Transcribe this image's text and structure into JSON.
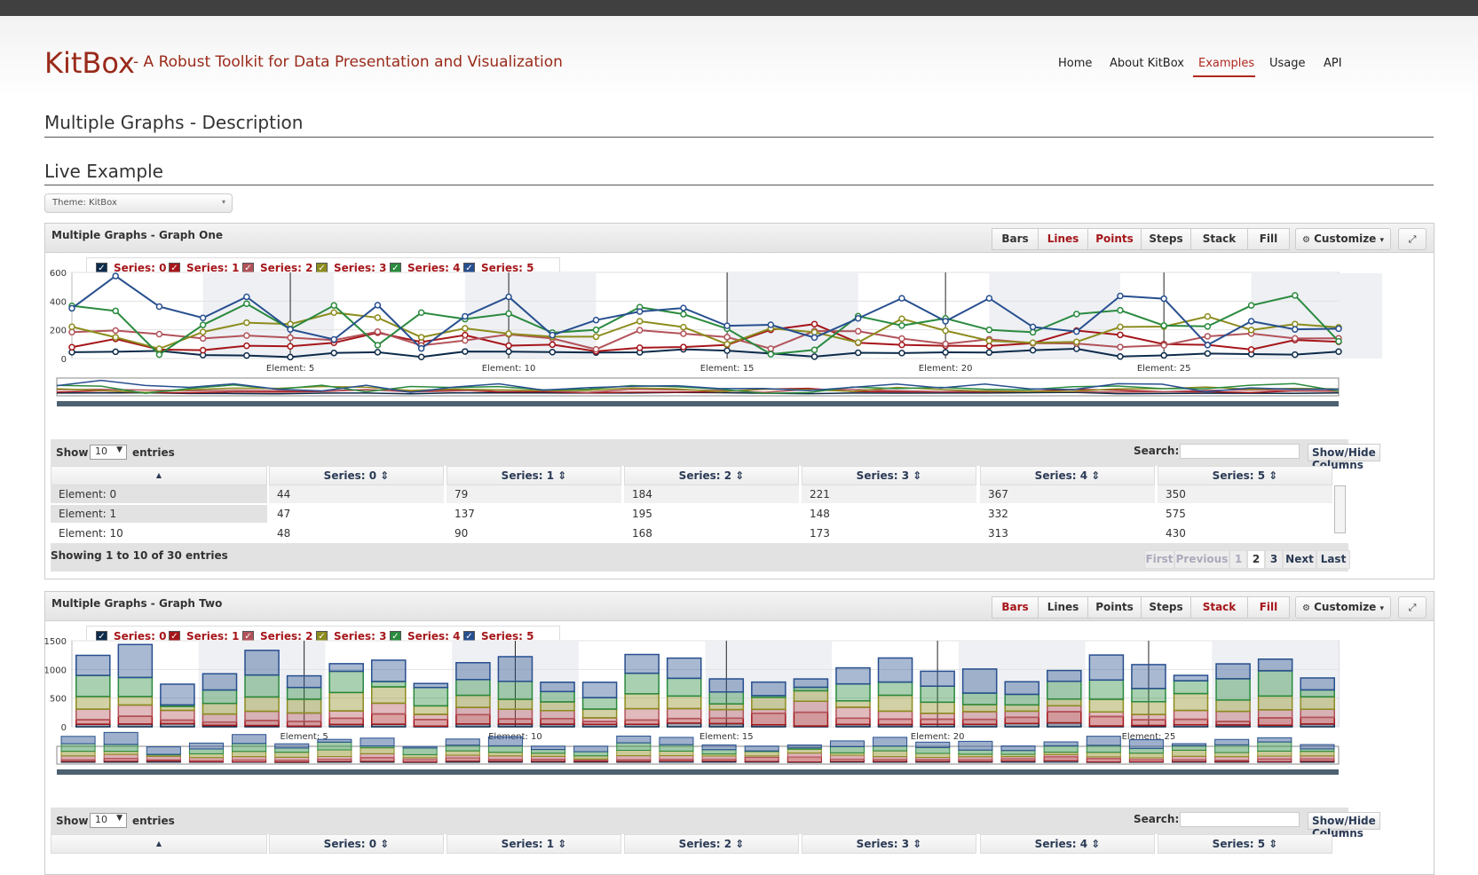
{
  "site": {
    "brand": "KitBox",
    "tagline": "- A Robust Toolkit for Data Presentation and Visualization",
    "accent": "#9a2a1a"
  },
  "nav": [
    {
      "label": "Home",
      "active": false
    },
    {
      "label": "About KitBox",
      "active": false
    },
    {
      "label": "Examples",
      "active": true
    },
    {
      "label": "Usage",
      "active": false
    },
    {
      "label": "API",
      "active": false
    }
  ],
  "headings": {
    "description": "Multiple Graphs - Description",
    "live": "Live Example"
  },
  "theme_select": {
    "value": "Theme: KitBox"
  },
  "toolbar_labels": [
    "Bars",
    "Lines",
    "Points",
    "Steps",
    "Stack",
    "Fill"
  ],
  "customize_label": "Customize",
  "fullscreen_icon": "expand-icon",
  "series": [
    {
      "name": "Series: 0",
      "color": "#0d2b4a"
    },
    {
      "name": "Series: 1",
      "color": "#a5161a"
    },
    {
      "name": "Series: 2",
      "color": "#b2535a"
    },
    {
      "name": "Series: 3",
      "color": "#8c8c1e"
    },
    {
      "name": "Series: 4",
      "color": "#2a8a3e"
    },
    {
      "name": "Series: 5",
      "color": "#274f8f"
    }
  ],
  "datatable": {
    "show": "Show",
    "entries": "entries",
    "page_length": "10",
    "search_label": "Search:",
    "showhide": "Show/Hide Columns",
    "columns": [
      "Series: 0",
      "Series: 1",
      "Series: 2",
      "Series: 3",
      "Series: 4",
      "Series: 5"
    ],
    "info": "Showing 1 to 10 of 30 entries",
    "pagination": [
      "First",
      "Previous",
      "1",
      "2",
      "3",
      "Next",
      "Last"
    ]
  },
  "graphs": [
    {
      "title": "Multiple Graphs - Graph One",
      "active_modes": [
        "Lines",
        "Points"
      ],
      "rows": [
        [
          "Element: 0",
          "44",
          "79",
          "184",
          "221",
          "367",
          "350"
        ],
        [
          "Element: 1",
          "47",
          "137",
          "195",
          "148",
          "332",
          "575"
        ]
      ],
      "cut_row": [
        "Element: 10",
        "48",
        "90",
        "168",
        "173",
        "313",
        "430"
      ]
    },
    {
      "title": "Multiple Graphs - Graph Two",
      "active_modes": [
        "Bars",
        "Stack",
        "Fill"
      ]
    }
  ],
  "chart_data": [
    {
      "type": "line",
      "x": [
        0,
        1,
        2,
        3,
        4,
        5,
        6,
        7,
        8,
        9,
        10,
        11,
        12,
        13,
        14,
        15,
        16,
        17,
        18,
        19,
        20,
        21,
        22,
        23,
        24,
        25,
        26,
        27,
        28,
        29
      ],
      "tick_labels": [
        "Element: 5",
        "Element: 10",
        "Element: 15",
        "Element: 20",
        "Element: 25"
      ],
      "tick_x": [
        5,
        10,
        15,
        20,
        25
      ],
      "ylim": [
        0,
        600
      ],
      "yticks": [
        0,
        200,
        400,
        600
      ],
      "series": [
        {
          "name": "Series: 0",
          "values": [
            44,
            47,
            53,
            24,
            21,
            10,
            39,
            44,
            11,
            49,
            48,
            45,
            42,
            43,
            64,
            55,
            35,
            13,
            40,
            38,
            43,
            42,
            58,
            68,
            14,
            22,
            35,
            31,
            27,
            48
          ]
        },
        {
          "name": "Series: 1",
          "values": [
            79,
            137,
            63,
            58,
            89,
            85,
            110,
            180,
            115,
            163,
            90,
            97,
            50,
            75,
            80,
            95,
            200,
            240,
            110,
            95,
            89,
            87,
            107,
            195,
            165,
            100,
            95,
            63,
            129,
            117
          ]
        },
        {
          "name": "Series: 2",
          "values": [
            184,
            195,
            170,
            140,
            160,
            145,
            128,
            187,
            91,
            126,
            168,
            140,
            64,
            197,
            173,
            149,
            69,
            192,
            190,
            139,
            102,
            134,
            107,
            104,
            80,
            92,
            155,
            174,
            140,
            141
          ]
        },
        {
          "name": "Series: 3",
          "values": [
            221,
            148,
            68,
            185,
            250,
            240,
            320,
            285,
            148,
            210,
            173,
            152,
            152,
            260,
            219,
            100,
            210,
            183,
            112,
            277,
            194,
            124,
            110,
            116,
            220,
            223,
            293,
            199,
            240,
            217
          ]
        },
        {
          "name": "Series: 4",
          "values": [
            367,
            332,
            27,
            234,
            382,
            205,
            370,
            93,
            320,
            275,
            313,
            180,
            200,
            358,
            309,
            208,
            30,
            60,
            295,
            230,
            280,
            200,
            183,
            310,
            336,
            230,
            224,
            370,
            440,
            120
          ]
        },
        {
          "name": "Series: 5",
          "values": [
            350,
            575,
            362,
            283,
            430,
            203,
            133,
            372,
            70,
            294,
            430,
            163,
            268,
            327,
            352,
            228,
            235,
            146,
            280,
            420,
            260,
            420,
            220,
            188,
            436,
            417,
            94,
            260,
            203,
            208
          ]
        }
      ]
    },
    {
      "type": "bar",
      "stacked": true,
      "x": [
        0,
        1,
        2,
        3,
        4,
        5,
        6,
        7,
        8,
        9,
        10,
        11,
        12,
        13,
        14,
        15,
        16,
        17,
        18,
        19,
        20,
        21,
        22,
        23,
        24,
        25,
        26,
        27,
        28,
        29
      ],
      "tick_labels": [
        "Element: 5",
        "Element: 10",
        "Element: 15",
        "Element: 20",
        "Element: 25"
      ],
      "tick_x": [
        5,
        10,
        15,
        20,
        25
      ],
      "ylim": [
        0,
        1500
      ],
      "yticks": [
        0,
        500,
        1000,
        1500
      ],
      "series": [
        {
          "name": "Series: 0",
          "values": [
            44,
            47,
            53,
            24,
            21,
            10,
            39,
            44,
            11,
            49,
            48,
            45,
            42,
            43,
            64,
            55,
            35,
            13,
            40,
            38,
            43,
            42,
            58,
            68,
            14,
            22,
            35,
            31,
            27,
            48
          ]
        },
        {
          "name": "Series: 1",
          "values": [
            79,
            137,
            63,
            58,
            89,
            85,
            110,
            180,
            115,
            163,
            90,
            97,
            50,
            75,
            80,
            95,
            200,
            240,
            110,
            95,
            89,
            87,
            107,
            195,
            165,
            100,
            95,
            63,
            129,
            117
          ]
        },
        {
          "name": "Series: 2",
          "values": [
            184,
            195,
            170,
            140,
            160,
            145,
            128,
            187,
            91,
            126,
            168,
            140,
            64,
            197,
            173,
            149,
            69,
            192,
            190,
            139,
            102,
            134,
            107,
            104,
            80,
            92,
            155,
            174,
            140,
            141
          ]
        },
        {
          "name": "Series: 3",
          "values": [
            221,
            148,
            68,
            185,
            250,
            240,
            320,
            285,
            148,
            210,
            173,
            152,
            152,
            260,
            219,
            100,
            210,
            183,
            112,
            277,
            194,
            124,
            110,
            116,
            220,
            223,
            293,
            199,
            240,
            217
          ]
        },
        {
          "name": "Series: 4",
          "values": [
            367,
            332,
            27,
            234,
            382,
            205,
            370,
            93,
            320,
            275,
            313,
            180,
            200,
            358,
            309,
            208,
            30,
            60,
            295,
            230,
            280,
            200,
            183,
            310,
            336,
            230,
            224,
            370,
            440,
            120
          ]
        },
        {
          "name": "Series: 5",
          "values": [
            350,
            575,
            362,
            283,
            430,
            203,
            133,
            372,
            70,
            294,
            430,
            163,
            268,
            327,
            352,
            228,
            235,
            146,
            280,
            420,
            260,
            420,
            220,
            188,
            436,
            417,
            94,
            260,
            203,
            208
          ]
        }
      ]
    }
  ]
}
